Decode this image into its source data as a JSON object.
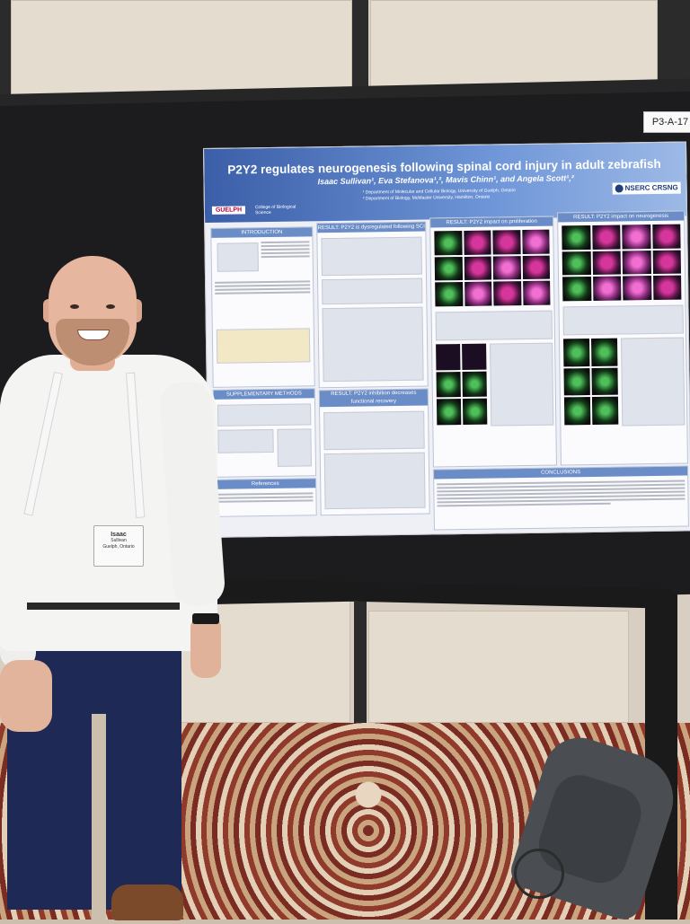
{
  "booth_tag": "P3-A-17",
  "poster": {
    "title": "P2Y2 regulates neurogenesis following spinal cord injury in adult zebrafish",
    "authors": "Isaac Sullivan¹, Eva Stefanova¹,², Mavis Chinn¹, and Angela Scott¹,²",
    "affiliation_1": "¹ Department of Molecular and Cellular Biology, University of Guelph, Ontario",
    "affiliation_2": "² Department of Biology, McMaster University, Hamilton, Ontario",
    "logo_university": "GUELPH",
    "logo_college": "College of Biological Science",
    "logo_funder": "NSERC CRSNG",
    "sections": {
      "introduction": "INTRODUCTION",
      "result_dysregulated": "RESULT: P2Y2 is dysregulated following SCI",
      "result_proliferation": "RESULT: P2Y2 impact on proliferation",
      "result_neurogenesis": "RESULT: P2Y2 impact on neurogenesis",
      "supplementary_methods": "SUPPLEMENTARY METHODS",
      "result_inhibition": "RESULT: P2Y2 inhibition decreases functional recovery",
      "references": "References",
      "conclusions": "CONCLUSIONS"
    }
  },
  "badge": {
    "name": "Isaac",
    "surname": "Sullivan",
    "affiliation": "Guelph, Ontario"
  },
  "colors": {
    "poster_header": "#3b5ea8",
    "section_header": "#6a8cc7",
    "board": "#1c1c1e",
    "micro_magenta": "#d6369c",
    "micro_green": "#4fbf5a"
  }
}
